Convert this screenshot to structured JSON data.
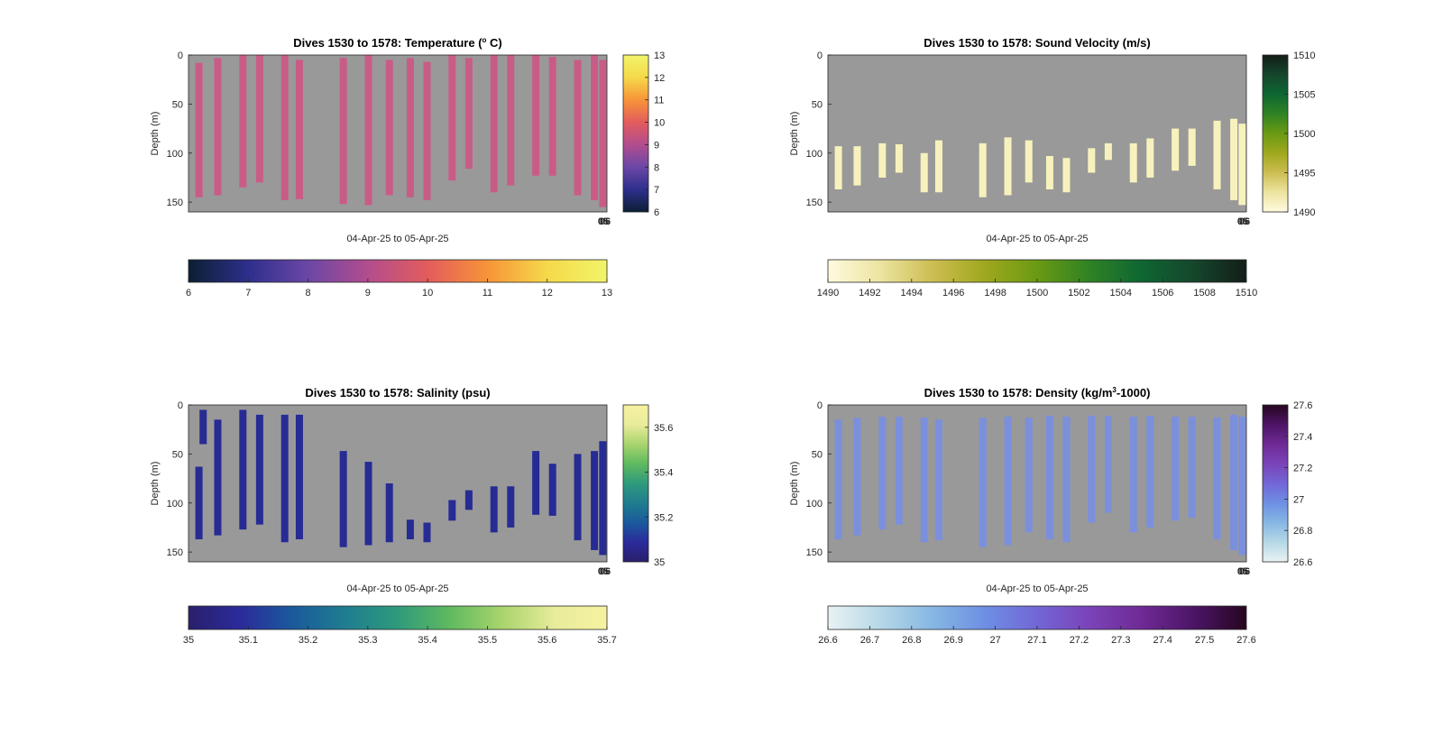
{
  "chart_data": [
    {
      "id": "temperature",
      "type": "heatmap",
      "title_parts": [
        "Dives 1530 to 1578: Temperature (",
        "o",
        " C)"
      ],
      "ylabel": "Depth (m)",
      "xlabel": "04-Apr-25 to 05-Apr-25",
      "xtick_label": "05",
      "xtick_label_overlap": "06",
      "yticks": [
        "0",
        "50",
        "100",
        "150"
      ],
      "ylim": [
        0,
        160
      ],
      "colorbar_range": [
        6,
        13
      ],
      "colorbar_ticks": [
        "6",
        "7",
        "8",
        "9",
        "10",
        "11",
        "12",
        "13"
      ],
      "colormap": [
        "#0b1f33",
        "#2e2f8c",
        "#6b47a6",
        "#b24d8e",
        "#e35c5c",
        "#f79438",
        "#f5d94a",
        "#f2f46a"
      ],
      "cast_color": "#c95c87",
      "casts": [
        {
          "x": 0.025,
          "top": 8,
          "bottom": 145
        },
        {
          "x": 0.07,
          "top": 3,
          "bottom": 143
        },
        {
          "x": 0.13,
          "top": 0,
          "bottom": 135
        },
        {
          "x": 0.17,
          "top": 0,
          "bottom": 130
        },
        {
          "x": 0.23,
          "top": 0,
          "bottom": 148
        },
        {
          "x": 0.265,
          "top": 5,
          "bottom": 147
        },
        {
          "x": 0.37,
          "top": 3,
          "bottom": 152
        },
        {
          "x": 0.43,
          "top": 0,
          "bottom": 153
        },
        {
          "x": 0.48,
          "top": 5,
          "bottom": 143
        },
        {
          "x": 0.53,
          "top": 3,
          "bottom": 145
        },
        {
          "x": 0.57,
          "top": 7,
          "bottom": 148
        },
        {
          "x": 0.63,
          "top": 0,
          "bottom": 128
        },
        {
          "x": 0.67,
          "top": 3,
          "bottom": 116
        },
        {
          "x": 0.73,
          "top": 0,
          "bottom": 140
        },
        {
          "x": 0.77,
          "top": 0,
          "bottom": 133
        },
        {
          "x": 0.83,
          "top": 0,
          "bottom": 123
        },
        {
          "x": 0.87,
          "top": 2,
          "bottom": 123
        },
        {
          "x": 0.93,
          "top": 5,
          "bottom": 143
        },
        {
          "x": 0.97,
          "top": 0,
          "bottom": 148
        },
        {
          "x": 0.99,
          "top": 5,
          "bottom": 155
        }
      ]
    },
    {
      "id": "sound-velocity",
      "type": "heatmap",
      "title_parts": [
        "Dives 1530 to 1578: Sound Velocity (m/s)"
      ],
      "ylabel": "Depth (m)",
      "xlabel": "04-Apr-25 to 05-Apr-25",
      "xtick_label": "05",
      "xtick_label_overlap": "06",
      "yticks": [
        "0",
        "50",
        "100",
        "150"
      ],
      "ylim": [
        0,
        160
      ],
      "colorbar_range": [
        1490,
        1510
      ],
      "colorbar_ticks": [
        "1490",
        "1492",
        "1494",
        "1496",
        "1498",
        "1500",
        "1502",
        "1504",
        "1506",
        "1508",
        "1510"
      ],
      "side_colorbar_ticks": [
        "1490",
        "1495",
        "1500",
        "1505",
        "1510"
      ],
      "colormap": [
        "#fffadf",
        "#ece4a0",
        "#cdbd52",
        "#9fa81e",
        "#6a9a13",
        "#2f8224",
        "#0e6632",
        "#15462c",
        "#131d17"
      ],
      "cast_color": "#f7f2bd",
      "casts": [
        {
          "x": 0.025,
          "top": 93,
          "bottom": 137
        },
        {
          "x": 0.07,
          "top": 93,
          "bottom": 133
        },
        {
          "x": 0.13,
          "top": 90,
          "bottom": 125
        },
        {
          "x": 0.17,
          "top": 91,
          "bottom": 120
        },
        {
          "x": 0.23,
          "top": 100,
          "bottom": 140
        },
        {
          "x": 0.265,
          "top": 87,
          "bottom": 140
        },
        {
          "x": 0.37,
          "top": 90,
          "bottom": 145
        },
        {
          "x": 0.43,
          "top": 84,
          "bottom": 143
        },
        {
          "x": 0.48,
          "top": 87,
          "bottom": 130
        },
        {
          "x": 0.53,
          "top": 103,
          "bottom": 137
        },
        {
          "x": 0.57,
          "top": 105,
          "bottom": 140
        },
        {
          "x": 0.63,
          "top": 95,
          "bottom": 120
        },
        {
          "x": 0.67,
          "top": 90,
          "bottom": 107
        },
        {
          "x": 0.73,
          "top": 90,
          "bottom": 130
        },
        {
          "x": 0.77,
          "top": 85,
          "bottom": 125
        },
        {
          "x": 0.83,
          "top": 75,
          "bottom": 118
        },
        {
          "x": 0.87,
          "top": 75,
          "bottom": 113
        },
        {
          "x": 0.93,
          "top": 67,
          "bottom": 137
        },
        {
          "x": 0.97,
          "top": 65,
          "bottom": 148
        },
        {
          "x": 0.99,
          "top": 70,
          "bottom": 153
        }
      ]
    },
    {
      "id": "salinity",
      "type": "heatmap",
      "title_parts": [
        "Dives 1530 to 1578: Salinity (psu)"
      ],
      "ylabel": "Depth (m)",
      "xlabel": "04-Apr-25 to 05-Apr-25",
      "xtick_label": "05",
      "xtick_label_overlap": "06",
      "yticks": [
        "0",
        "50",
        "100",
        "150"
      ],
      "ylim": [
        0,
        160
      ],
      "colorbar_range": [
        35,
        35.7
      ],
      "colorbar_ticks": [
        "35",
        "35.1",
        "35.2",
        "35.3",
        "35.4",
        "35.5",
        "35.6",
        "35.7"
      ],
      "side_colorbar_ticks": [
        "35",
        "35.2",
        "35.4",
        "35.6"
      ],
      "colormap": [
        "#2a1f6b",
        "#2b2b9b",
        "#1a5a9c",
        "#1f7d8f",
        "#2f9a7c",
        "#5fba5f",
        "#a9d46d",
        "#e8ec9b",
        "#f7f2a0"
      ],
      "cast_color": "#272b94",
      "casts": [
        {
          "x": 0.025,
          "top": 63,
          "bottom": 137
        },
        {
          "x": 0.035,
          "top": 5,
          "bottom": 40
        },
        {
          "x": 0.07,
          "top": 15,
          "bottom": 133
        },
        {
          "x": 0.13,
          "top": 5,
          "bottom": 127
        },
        {
          "x": 0.17,
          "top": 10,
          "bottom": 122
        },
        {
          "x": 0.23,
          "top": 10,
          "bottom": 140
        },
        {
          "x": 0.265,
          "top": 10,
          "bottom": 137
        },
        {
          "x": 0.37,
          "top": 47,
          "bottom": 145
        },
        {
          "x": 0.43,
          "top": 58,
          "bottom": 143
        },
        {
          "x": 0.48,
          "top": 80,
          "bottom": 140
        },
        {
          "x": 0.53,
          "top": 117,
          "bottom": 137
        },
        {
          "x": 0.57,
          "top": 120,
          "bottom": 140
        },
        {
          "x": 0.63,
          "top": 97,
          "bottom": 118
        },
        {
          "x": 0.67,
          "top": 87,
          "bottom": 107
        },
        {
          "x": 0.73,
          "top": 83,
          "bottom": 130
        },
        {
          "x": 0.77,
          "top": 83,
          "bottom": 125
        },
        {
          "x": 0.83,
          "top": 47,
          "bottom": 112
        },
        {
          "x": 0.87,
          "top": 60,
          "bottom": 113
        },
        {
          "x": 0.93,
          "top": 50,
          "bottom": 138
        },
        {
          "x": 0.97,
          "top": 47,
          "bottom": 148
        },
        {
          "x": 0.99,
          "top": 37,
          "bottom": 153
        }
      ]
    },
    {
      "id": "density",
      "type": "heatmap",
      "title_parts": [
        "Dives 1530 to 1578: Density (kg/m",
        "3",
        "-1000)"
      ],
      "ylabel": "Depth (m)",
      "xlabel": "04-Apr-25 to 05-Apr-25",
      "xtick_label": "05",
      "xtick_label_overlap": "06",
      "yticks": [
        "0",
        "50",
        "100",
        "150"
      ],
      "ylim": [
        0,
        160
      ],
      "colorbar_range": [
        26.6,
        27.6
      ],
      "colorbar_ticks": [
        "26.6",
        "26.7",
        "26.8",
        "26.9",
        "27",
        "27.1",
        "27.2",
        "27.3",
        "27.4",
        "27.5",
        "27.6"
      ],
      "side_colorbar_ticks": [
        "26.6",
        "26.8",
        "27",
        "27.2",
        "27.4",
        "27.6"
      ],
      "colormap": [
        "#e9f2f3",
        "#b6d8e6",
        "#86b7e3",
        "#6e8fe3",
        "#7266d6",
        "#7a43b8",
        "#6f2a95",
        "#4c1466",
        "#26061f"
      ],
      "cast_color": "#7b90dc",
      "casts": [
        {
          "x": 0.025,
          "top": 15,
          "bottom": 137
        },
        {
          "x": 0.07,
          "top": 13,
          "bottom": 133
        },
        {
          "x": 0.13,
          "top": 12,
          "bottom": 127
        },
        {
          "x": 0.17,
          "top": 12,
          "bottom": 122
        },
        {
          "x": 0.23,
          "top": 13,
          "bottom": 140
        },
        {
          "x": 0.265,
          "top": 15,
          "bottom": 138
        },
        {
          "x": 0.37,
          "top": 13,
          "bottom": 145
        },
        {
          "x": 0.43,
          "top": 12,
          "bottom": 143
        },
        {
          "x": 0.48,
          "top": 13,
          "bottom": 130
        },
        {
          "x": 0.53,
          "top": 11,
          "bottom": 137
        },
        {
          "x": 0.57,
          "top": 12,
          "bottom": 140
        },
        {
          "x": 0.63,
          "top": 11,
          "bottom": 120
        },
        {
          "x": 0.67,
          "top": 11,
          "bottom": 110
        },
        {
          "x": 0.73,
          "top": 12,
          "bottom": 130
        },
        {
          "x": 0.77,
          "top": 11,
          "bottom": 125
        },
        {
          "x": 0.83,
          "top": 12,
          "bottom": 118
        },
        {
          "x": 0.87,
          "top": 12,
          "bottom": 115
        },
        {
          "x": 0.93,
          "top": 13,
          "bottom": 137
        },
        {
          "x": 0.97,
          "top": 10,
          "bottom": 148
        },
        {
          "x": 0.99,
          "top": 12,
          "bottom": 153
        }
      ]
    }
  ],
  "background_color": "#999999"
}
